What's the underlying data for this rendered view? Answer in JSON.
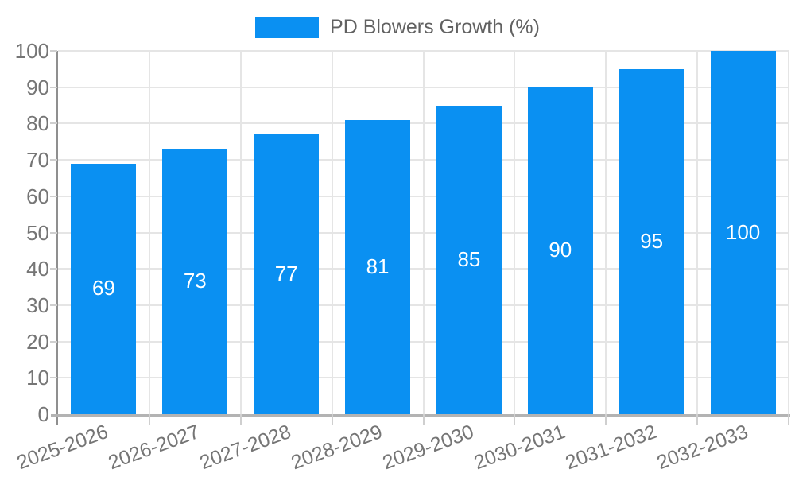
{
  "legend": {
    "label": "PD Blowers Growth (%)"
  },
  "chart_data": {
    "type": "bar",
    "title": "PD Blowers Growth (%)",
    "categories": [
      "2025-2026",
      "2026-2027",
      "2027-2028",
      "2028-2029",
      "2029-2030",
      "2030-2031",
      "2031-2032",
      "2032-2033"
    ],
    "series": [
      {
        "name": "PD Blowers Growth (%)",
        "values": [
          69,
          73,
          77,
          81,
          85,
          90,
          95,
          100
        ]
      }
    ],
    "value_labels_shown": true,
    "xlabel": "",
    "ylabel": "",
    "ylim": [
      0,
      100
    ],
    "yticks": [
      0,
      10,
      20,
      30,
      40,
      50,
      60,
      70,
      80,
      90,
      100
    ],
    "grid": true,
    "legend_position": "top-center",
    "colors": {
      "bar": "#0a90f2",
      "value_label": "#ffffff",
      "axis_text": "#757575",
      "legend_text": "#616161",
      "gridline": "#e5e5e5",
      "x_axis_line": "#b3b3b3",
      "y_axis_line": "#8f8f8f",
      "tick_mark": "#cfcfcf",
      "background": "#ffffff"
    }
  }
}
